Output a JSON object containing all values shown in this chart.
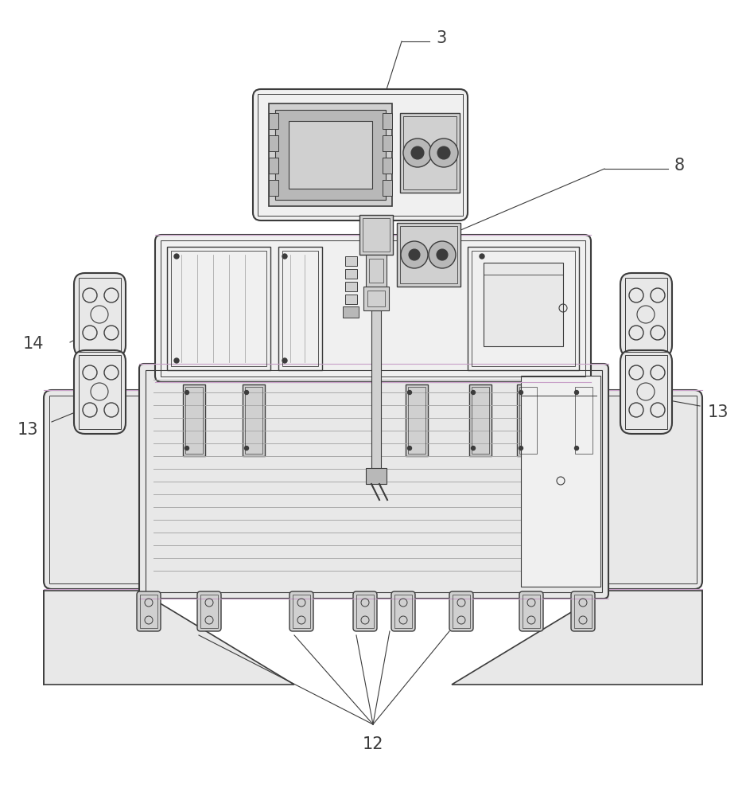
{
  "bg": "#ffffff",
  "lc": "#3c3c3c",
  "lc2": "#555555",
  "gray1": "#e8e8e8",
  "gray2": "#d0d0d0",
  "gray3": "#b8b8b8",
  "gray4": "#f0f0f0",
  "purple": "#c8a0c8",
  "fig_w": 9.38,
  "fig_h": 10.0,
  "dpi": 100
}
